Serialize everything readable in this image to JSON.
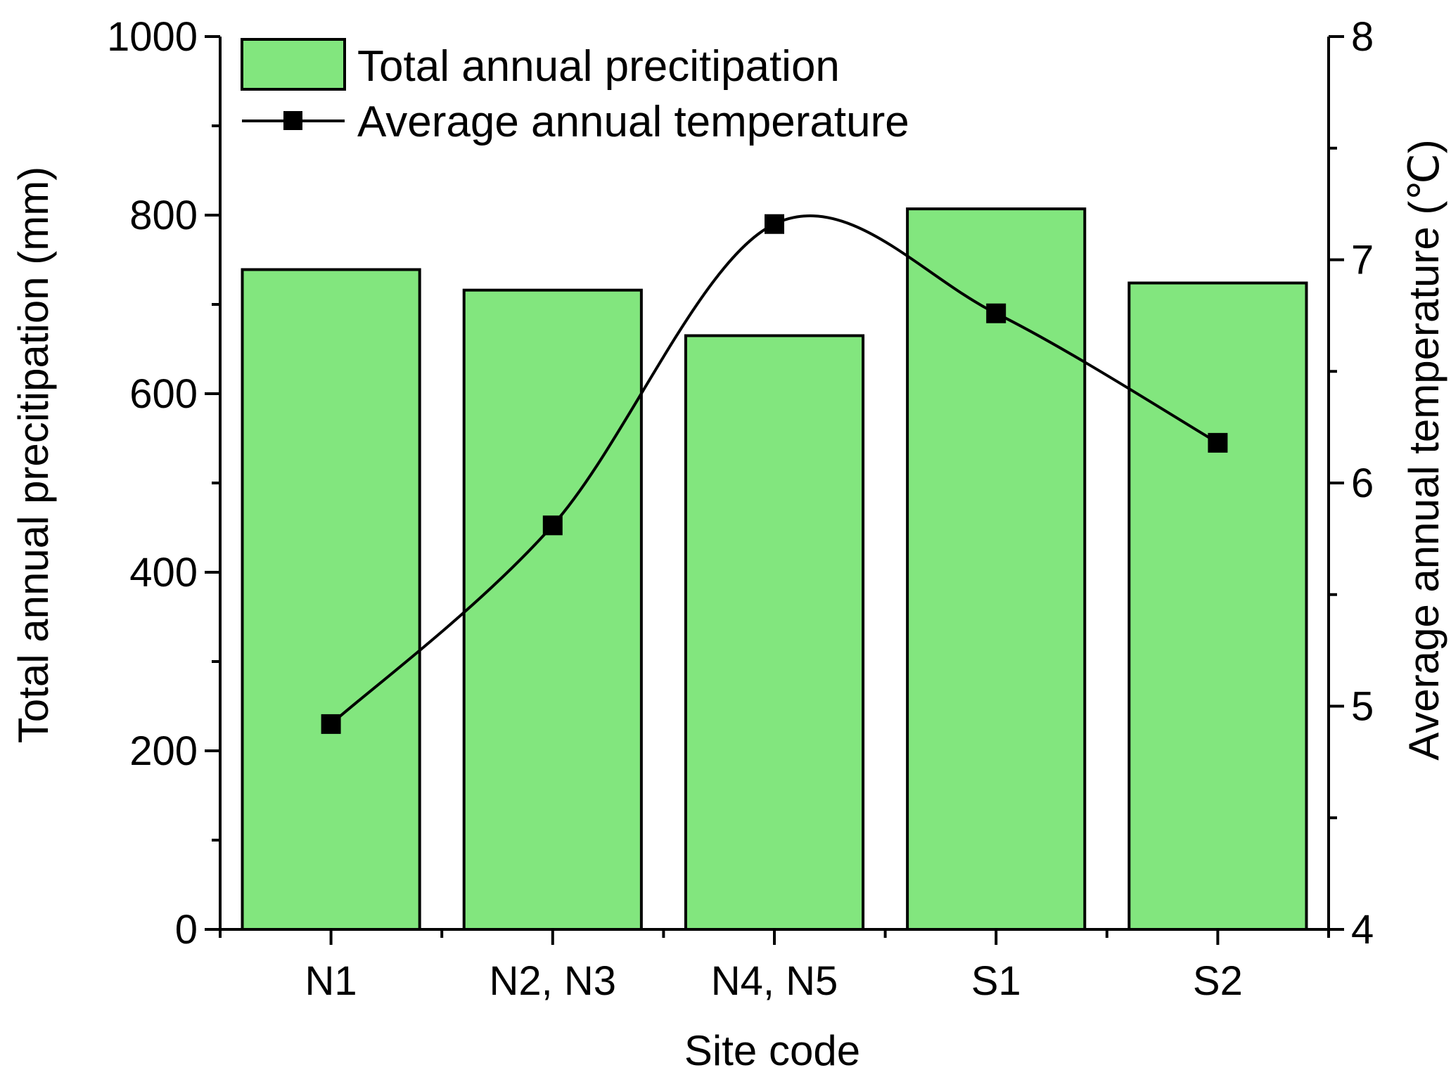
{
  "chart_data": {
    "type": "bar+line",
    "categories": [
      "N1",
      "N2, N3",
      "N4, N5",
      "S1",
      "S2"
    ],
    "series": [
      {
        "name": "Total annual precitipation",
        "kind": "bar",
        "axis": "left",
        "values": [
          739,
          716,
          665,
          807,
          724
        ]
      },
      {
        "name": "Average annual temperature",
        "kind": "line",
        "axis": "right",
        "values": [
          4.92,
          5.81,
          7.16,
          6.76,
          6.18
        ]
      }
    ],
    "xlabel": "Site code",
    "ylabel": "Total annual precitipation (mm)",
    "y2label": "Average annual temperature (℃)",
    "ylim": [
      0,
      1000
    ],
    "y2lim": [
      4,
      8
    ],
    "yticks": [
      "0",
      "200",
      "400",
      "600",
      "800",
      "1000"
    ],
    "y2ticks": [
      "4",
      "5",
      "6",
      "7",
      "8"
    ],
    "legend_position": "top-left",
    "grid": false,
    "colors": {
      "bar_fill": "#82e67e",
      "stroke": "#000000"
    }
  }
}
